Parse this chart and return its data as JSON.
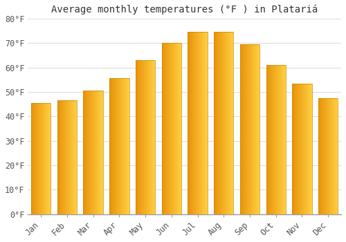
{
  "title": "Average monthly temperatures (°F ) in Platariá",
  "months": [
    "Jan",
    "Feb",
    "Mar",
    "Apr",
    "May",
    "Jun",
    "Jul",
    "Aug",
    "Sep",
    "Oct",
    "Nov",
    "Dec"
  ],
  "values": [
    45.5,
    46.5,
    50.5,
    55.5,
    63.0,
    70.0,
    74.5,
    74.5,
    69.5,
    61.0,
    53.5,
    47.5
  ],
  "bar_color_left": "#E8920A",
  "bar_color_right": "#FFD040",
  "bar_color_mid": "#FFA800",
  "background_color": "#ffffff",
  "grid_color": "#dddddd",
  "ylim": [
    0,
    80
  ],
  "yticks": [
    0,
    10,
    20,
    30,
    40,
    50,
    60,
    70,
    80
  ],
  "ytick_labels": [
    "0°F",
    "10°F",
    "20°F",
    "30°F",
    "40°F",
    "50°F",
    "60°F",
    "70°F",
    "80°F"
  ],
  "title_fontsize": 10,
  "tick_fontsize": 8.5,
  "font_family": "monospace",
  "bar_width": 0.75
}
